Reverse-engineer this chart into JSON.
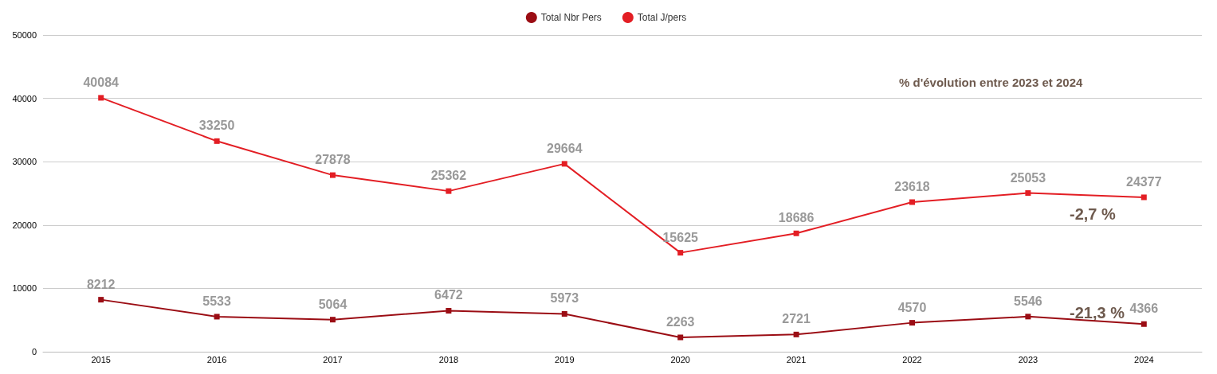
{
  "chart_data": {
    "type": "line",
    "categories": [
      "2015",
      "2016",
      "2017",
      "2018",
      "2019",
      "2020",
      "2021",
      "2022",
      "2023",
      "2024"
    ],
    "series": [
      {
        "name": "Total Nbr Pers",
        "color": "#9b0d14",
        "values": [
          8212,
          5533,
          5064,
          6472,
          5973,
          2263,
          2721,
          4570,
          5546,
          4366
        ]
      },
      {
        "name": "Total J/pers",
        "color": "#e31e24",
        "values": [
          40084,
          33250,
          27878,
          25362,
          29664,
          15625,
          18686,
          23618,
          25053,
          24377
        ]
      }
    ],
    "ylim": [
      0,
      50000
    ],
    "yticks": [
      0,
      10000,
      20000,
      30000,
      40000,
      50000
    ],
    "grid": "y",
    "legend": "top",
    "marker": "square",
    "line_style": "solid",
    "data_labels": true,
    "annotations": [
      "% d'évolution entre 2023 et 2024",
      "-2,7 %",
      "-21,3 %"
    ]
  }
}
